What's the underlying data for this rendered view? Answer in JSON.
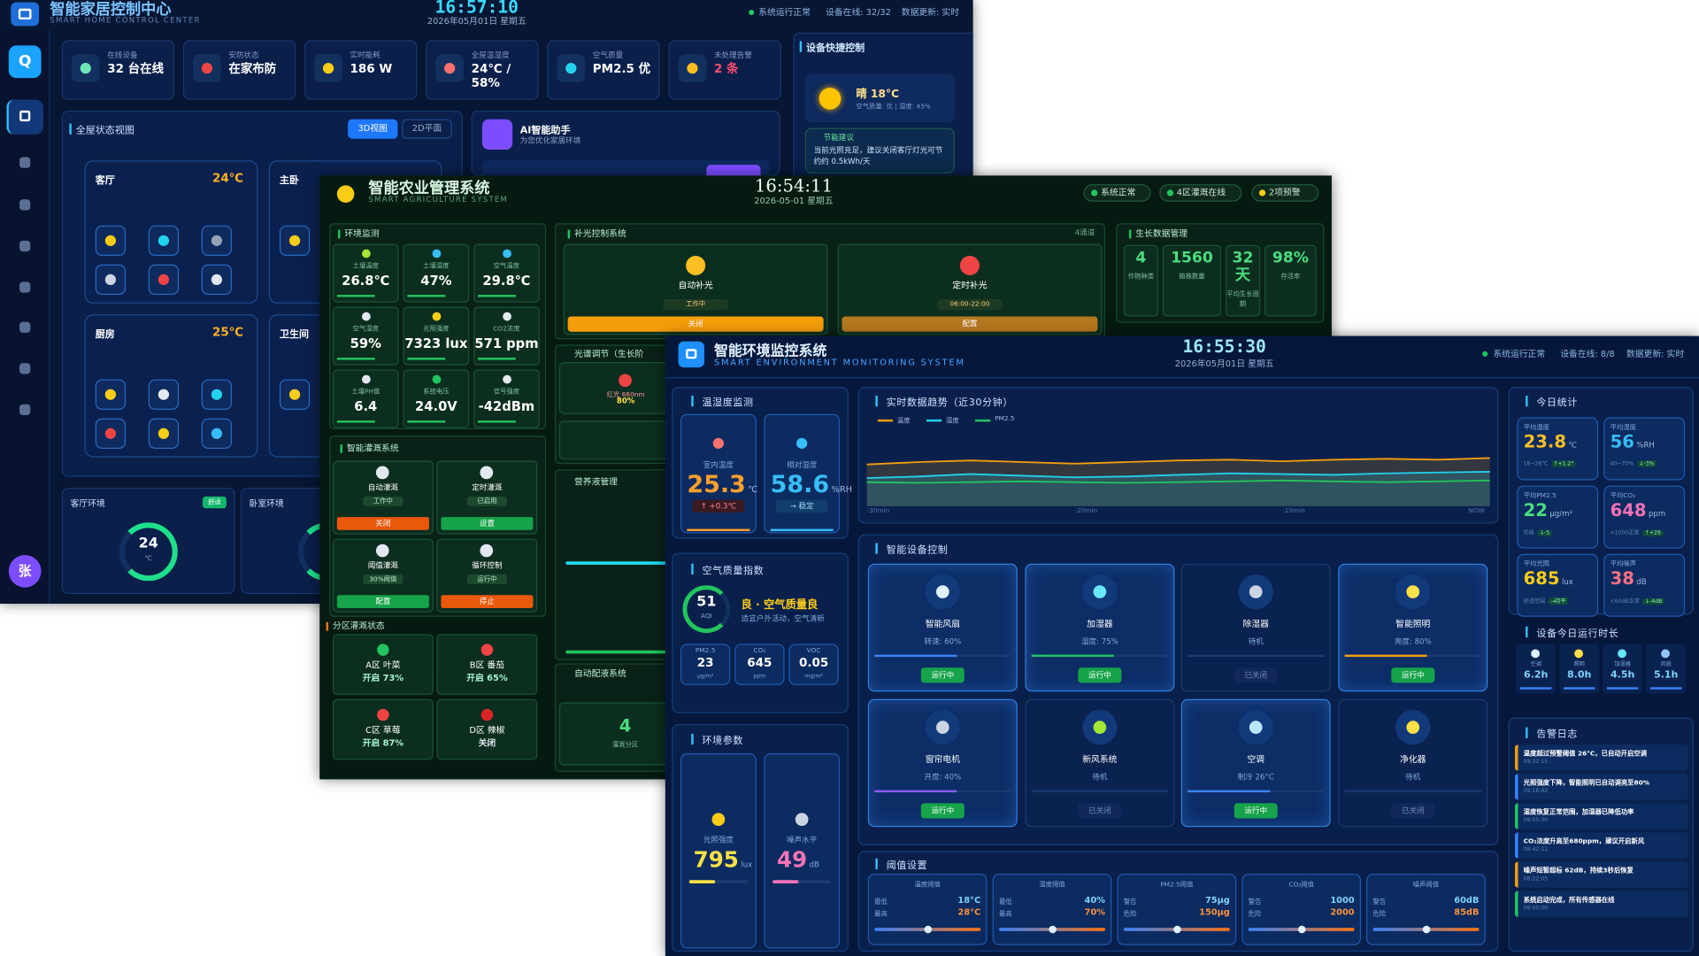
{
  "home": {
    "title": "智能家居控制中心",
    "subtitle": "SMART HOME CONTROL CENTER",
    "time": "16:57:10",
    "date": "2026年05月01日 星期五",
    "status": [
      "系统运行正常",
      "设备在线: 32/32",
      "数据更新: 实时"
    ],
    "logo": "Q",
    "avatar": "张",
    "stats": [
      {
        "label": "在线设备",
        "value": "32 台在线"
      },
      {
        "label": "安防状态",
        "value": "在家布防"
      },
      {
        "label": "实时能耗",
        "value": "186 W"
      },
      {
        "label": "全屋温湿度",
        "value": "24℃ / 58%"
      },
      {
        "label": "空气质量",
        "value": "PM2.5 优"
      },
      {
        "label": "未处理告警",
        "value": "2 条"
      }
    ],
    "view": {
      "title": "全屋状态视图",
      "buttons": [
        "3D视图",
        "2D平面"
      ],
      "rooms": [
        {
          "name": "客厅",
          "temp": "24℃"
        },
        {
          "name": "主卧"
        },
        {
          "name": "厨房",
          "temp": "25℃"
        },
        {
          "name": "卫生间"
        }
      ]
    },
    "assistant": {
      "title": "AI智能助手",
      "subtitle": "为您优化家居环境"
    },
    "env": [
      {
        "title": "客厅环境",
        "badge": "舒适",
        "value": "24",
        "unit": "℃"
      },
      {
        "title": "卧室环境"
      }
    ],
    "quick": {
      "title": "设备快捷控制",
      "weather": "晴 18°C",
      "weather_detail": "空气质量: 优 | 湿度: 45%",
      "tip_title": "节能建议",
      "tip": "当前光照充足，建议关闭客厅灯光可节约约 0.5kWh/天"
    }
  },
  "agri": {
    "title": "智能农业管理系统",
    "subtitle": "SMART AGRICULTURE SYSTEM",
    "time": "16:54:11",
    "date": "2026-05-01 星期五",
    "status": [
      "系统正常",
      "4区灌溉在线",
      "2项预警"
    ],
    "monitor": {
      "title": "环境监测",
      "tiles": [
        {
          "label": "土壤温度",
          "value": "26.8℃"
        },
        {
          "label": "土壤湿度",
          "value": "47%"
        },
        {
          "label": "空气温度",
          "value": "29.8℃"
        },
        {
          "label": "空气湿度",
          "value": "59%"
        },
        {
          "label": "光照强度",
          "value": "7323 lux"
        },
        {
          "label": "CO2浓度",
          "value": "571 ppm"
        },
        {
          "label": "土壤PH值",
          "value": "6.4"
        },
        {
          "label": "系统电压",
          "value": "24.0V"
        },
        {
          "label": "信号强度",
          "value": "-42dBm"
        }
      ]
    },
    "light": {
      "title": "补光控制系统",
      "channels": "4通道",
      "cards": [
        {
          "name": "自动补光",
          "state": "工作中",
          "button": "关闭"
        },
        {
          "name": "定时补光",
          "state": "06:00-22:00",
          "button": "配置"
        }
      ]
    },
    "spectrum": {
      "title": "光谱调节（生长阶",
      "label": "红光 660nm",
      "value": "80%"
    },
    "nutrient": {
      "title": "营养液管理"
    },
    "dosing": {
      "title": "自动配液系统",
      "value": "4",
      "label": "灌溉分区"
    },
    "growth": {
      "title": "生长数据管理",
      "items": [
        {
          "value": "4",
          "label": "作物种类"
        },
        {
          "value": "1560",
          "label": "植株数量"
        },
        {
          "value": "32 天",
          "label": "平均生长周期"
        },
        {
          "value": "98%",
          "label": "存活率"
        }
      ]
    },
    "irrigation": {
      "title": "智能灌溉系统",
      "cards": [
        {
          "name": "自动灌溉",
          "state": "工作中",
          "button": "关闭"
        },
        {
          "name": "定时灌溉",
          "state": "已启用",
          "button": "设置"
        },
        {
          "name": "阈值灌溉",
          "state": "30%阈值",
          "button": "配置"
        },
        {
          "name": "循环控制",
          "state": "运行中",
          "button": "停止"
        }
      ]
    },
    "zones": {
      "title": "分区灌溉状态",
      "items": [
        {
          "name": "A区 叶菜",
          "state": "开启 73%"
        },
        {
          "name": "B区 番茄",
          "state": "开启 65%"
        },
        {
          "name": "C区 草莓",
          "state": "开启 87%"
        },
        {
          "name": "D区 辣椒",
          "state": "关闭"
        }
      ]
    }
  },
  "env": {
    "title": "智能环境监控系统",
    "subtitle": "SMART ENVIRONMENT MONITORING SYSTEM",
    "time": "16:55:30",
    "date": "2026年05月01日 星期五",
    "status": [
      "系统运行正常",
      "设备在线: 8/8",
      "数据更新: 实时"
    ],
    "climate": {
      "title": "温湿度监测",
      "cards": [
        {
          "label": "室内温度",
          "value": "25.3",
          "unit": "℃",
          "trend": "↑ +0.3℃"
        },
        {
          "label": "相对湿度",
          "value": "58.6",
          "unit": "%RH",
          "trend": "→ 稳定"
        }
      ]
    },
    "air": {
      "title": "空气质量指数",
      "aqi": "51",
      "aqi_label": "AQI",
      "level": "良 · 空气质量良",
      "advice": "适宜户外活动，空气清新",
      "items": [
        {
          "label": "PM2.5",
          "value": "23",
          "unit": "μg/m³"
        },
        {
          "label": "CO₂",
          "value": "645",
          "unit": "ppm"
        },
        {
          "label": "VOC",
          "value": "0.05",
          "unit": "mg/m³"
        }
      ]
    },
    "params": {
      "title": "环境参数",
      "cards": [
        {
          "label": "光照强度",
          "value": "795",
          "unit": "lux"
        },
        {
          "label": "噪声水平",
          "value": "49",
          "unit": "dB"
        }
      ]
    },
    "trend": {
      "type": "line",
      "title": "实时数据趋势（近30分钟）",
      "x": [
        "-30min",
        null,
        null,
        null,
        "-20min",
        null,
        null,
        null,
        "-10min",
        null,
        null,
        null,
        "NOW"
      ],
      "ylim": [
        0,
        100
      ],
      "series": [
        {
          "name": "温度",
          "color": "#f59e0b",
          "values": [
            52,
            55,
            57,
            55,
            53,
            55,
            57,
            58,
            56,
            58,
            59,
            58,
            60
          ]
        },
        {
          "name": "湿度",
          "color": "#22d3ee",
          "values": [
            35,
            37,
            40,
            38,
            36,
            37,
            39,
            41,
            40,
            39,
            41,
            42,
            43
          ]
        },
        {
          "name": "PM2.5",
          "color": "#22c55e",
          "values": [
            30,
            29,
            30,
            31,
            30,
            29,
            30,
            31,
            32,
            31,
            30,
            31,
            32
          ]
        }
      ]
    },
    "devices": {
      "title": "智能设备控制",
      "items": [
        {
          "name": "智能风扇",
          "detail": "转速: 60%",
          "status": "运行中"
        },
        {
          "name": "加湿器",
          "detail": "湿度: 75%",
          "status": "运行中"
        },
        {
          "name": "除湿器",
          "detail": "待机",
          "status": "已关闭"
        },
        {
          "name": "智能照明",
          "detail": "亮度: 80%",
          "status": "运行中"
        },
        {
          "name": "窗帘电机",
          "detail": "开度: 40%",
          "status": "运行中"
        },
        {
          "name": "新风系统",
          "detail": "待机",
          "status": "已关闭"
        },
        {
          "name": "空调",
          "detail": "制冷 26°C",
          "status": "运行中"
        },
        {
          "name": "净化器",
          "detail": "待机",
          "status": "已关闭"
        }
      ]
    },
    "thresholds": {
      "title": "阈值设置",
      "items": [
        {
          "name": "温度阈值",
          "rows": [
            {
              "label": "最低",
              "value": "18°C"
            },
            {
              "label": "最高",
              "value": "28°C"
            }
          ]
        },
        {
          "name": "湿度阈值",
          "rows": [
            {
              "label": "最低",
              "value": "40%"
            },
            {
              "label": "最高",
              "value": "70%"
            }
          ]
        },
        {
          "name": "PM2.5阈值",
          "rows": [
            {
              "label": "警告",
              "value": "75μg"
            },
            {
              "label": "危险",
              "value": "150μg"
            }
          ]
        },
        {
          "name": "CO₂阈值",
          "rows": [
            {
              "label": "警告",
              "value": "1000"
            },
            {
              "label": "危险",
              "value": "2000"
            }
          ]
        },
        {
          "name": "噪声阈值",
          "rows": [
            {
              "label": "警告",
              "value": "60dB"
            },
            {
              "label": "危险",
              "value": "85dB"
            }
          ]
        }
      ]
    },
    "today": {
      "title": "今日统计",
      "items": [
        {
          "label": "平均温度",
          "value": "23.8",
          "unit": "℃",
          "range": "18~28℃",
          "change": "↑+1.2°"
        },
        {
          "label": "平均湿度",
          "value": "56",
          "unit": "%RH",
          "range": "40~70%",
          "change": "↓-3%"
        },
        {
          "label": "平均PM2.5",
          "value": "22",
          "unit": "μg/m³",
          "range": "优级",
          "change": "↓-5"
        },
        {
          "label": "平均CO₂",
          "value": "648",
          "unit": "ppm",
          "range": "<1000正常",
          "change": "↑+28"
        },
        {
          "label": "平均光照",
          "value": "685",
          "unit": "lux",
          "range": "舒适范围",
          "change": "→持平"
        },
        {
          "label": "平均噪声",
          "value": "38",
          "unit": "dB",
          "range": "<60dB正常",
          "change": "↓-4dB"
        }
      ]
    },
    "runtime": {
      "title": "设备今日运行时长",
      "items": [
        {
          "name": "空调",
          "value": "6.2h"
        },
        {
          "name": "照明",
          "value": "8.0h"
        },
        {
          "name": "加湿器",
          "value": "4.5h"
        },
        {
          "name": "风扇",
          "value": "5.1h"
        }
      ]
    },
    "alarms": {
      "title": "告警日志",
      "items": [
        {
          "text": "温度超过预警阈值 26°C，已自动开启空调",
          "time": "09:32:15"
        },
        {
          "text": "光照强度下降，智能照明已自动调亮至80%",
          "time": "09:18:42"
        },
        {
          "text": "湿度恢复正常范围，加湿器已降低功率",
          "time": "08:55:30"
        },
        {
          "text": "CO₂浓度升高至680ppm，建议开启新风",
          "time": "08:42:11"
        },
        {
          "text": "噪声短暂超标 62dB，持续3秒后恢复",
          "time": "08:22:05"
        },
        {
          "text": "系统启动完成，所有传感器在线",
          "time": "08:00:00"
        }
      ]
    }
  }
}
